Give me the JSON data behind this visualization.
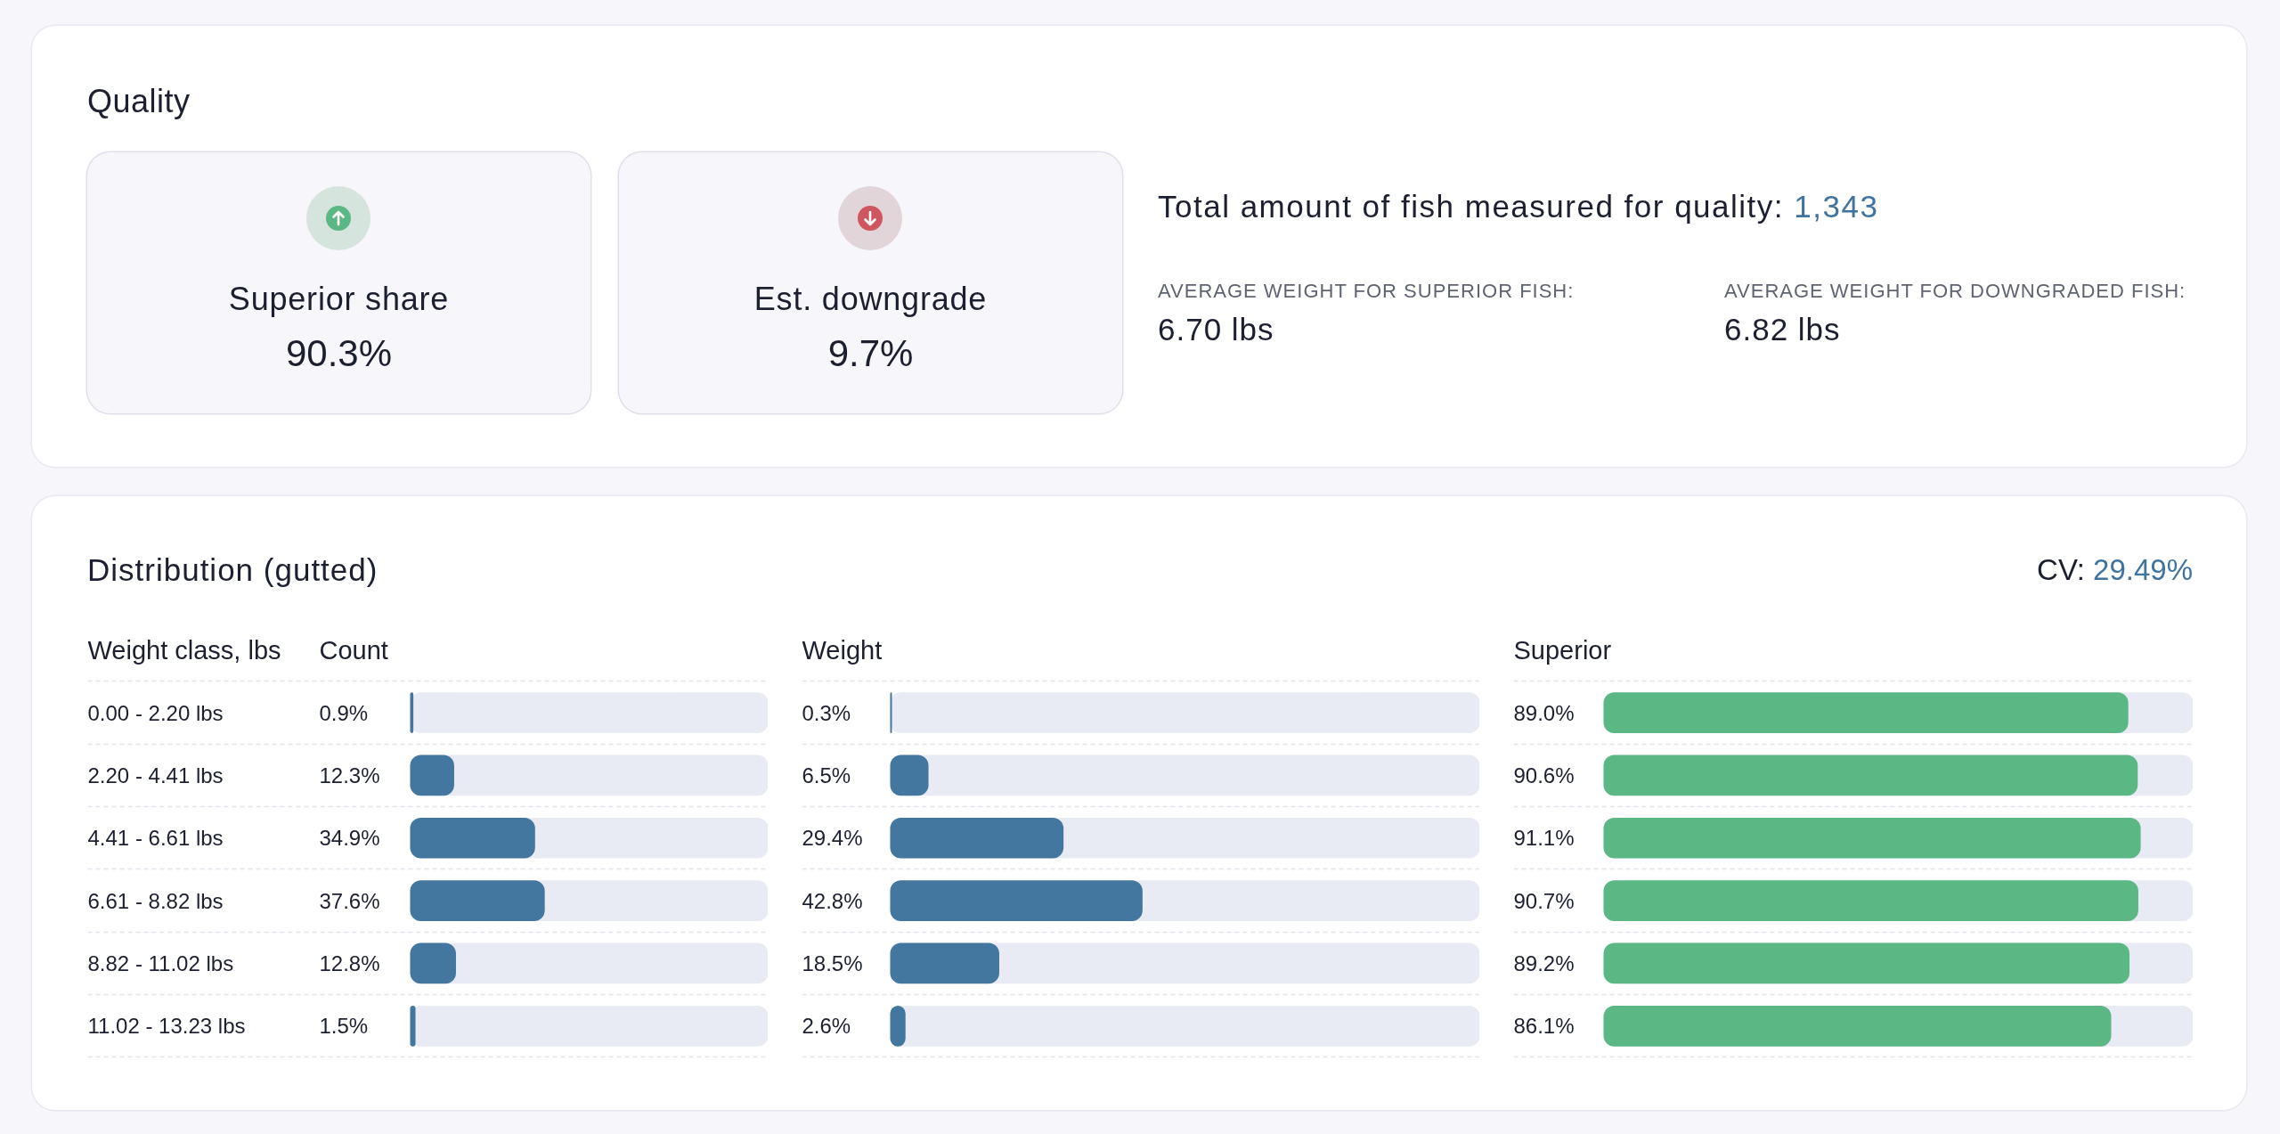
{
  "chart_data": [
    {
      "type": "other",
      "title": "Quality",
      "annotations": [
        "Superior share",
        "90.3%",
        "Est. downgrade",
        "9.7%",
        "Total amount of fish measured for quality:",
        "1,343",
        "AVERAGE WEIGHT FOR SUPERIOR FISH:",
        "6.70 lbs",
        "AVERAGE WEIGHT FOR DOWNGRADED FISH:",
        "6.82 lbs"
      ]
    },
    {
      "type": "other",
      "title": "Distribution (gutted)",
      "annotations": [
        "CV:",
        "29.49%"
      ]
    },
    {
      "type": "bar",
      "orientation": "horizontal",
      "title": "Count",
      "ylabel": "Weight class, lbs",
      "categories": [
        "0.00 - 2.20 lbs",
        "2.20 - 4.41 lbs",
        "4.41 - 6.61 lbs",
        "6.61 - 8.82 lbs",
        "8.82 - 11.02 lbs",
        "11.02 - 13.23 lbs"
      ],
      "values": [
        0.9,
        12.3,
        34.9,
        37.6,
        12.8,
        1.5
      ],
      "value_labels": [
        "0.9%",
        "12.3%",
        "34.9%",
        "37.6%",
        "12.8%",
        "1.5%"
      ],
      "color": "#44779f",
      "xlim": [
        0,
        100
      ],
      "grid": "y",
      "tick_labels": "y"
    },
    {
      "type": "bar",
      "orientation": "horizontal",
      "title": "Weight",
      "categories": [
        null,
        null,
        null,
        null,
        null,
        null
      ],
      "values": [
        0.3,
        6.5,
        29.4,
        42.8,
        18.5,
        2.6
      ],
      "value_labels": [
        "0.3%",
        "6.5%",
        "29.4%",
        "42.8%",
        "18.5%",
        "2.6%"
      ],
      "color": "#44779f",
      "xlim": [
        0,
        100
      ],
      "grid": "y",
      "tick_labels": false
    },
    {
      "type": "bar",
      "orientation": "horizontal",
      "title": "Superior",
      "categories": [
        null,
        null,
        null,
        null,
        null,
        null
      ],
      "values": [
        89.0,
        90.6,
        91.1,
        90.7,
        89.2,
        86.1
      ],
      "value_labels": [
        "89.0%",
        "90.6%",
        "91.1%",
        "90.7%",
        "89.2%",
        "86.1%"
      ],
      "color": "#5bb784",
      "xlim": [
        0,
        100
      ],
      "grid": "y",
      "tick_labels": false
    }
  ]
}
